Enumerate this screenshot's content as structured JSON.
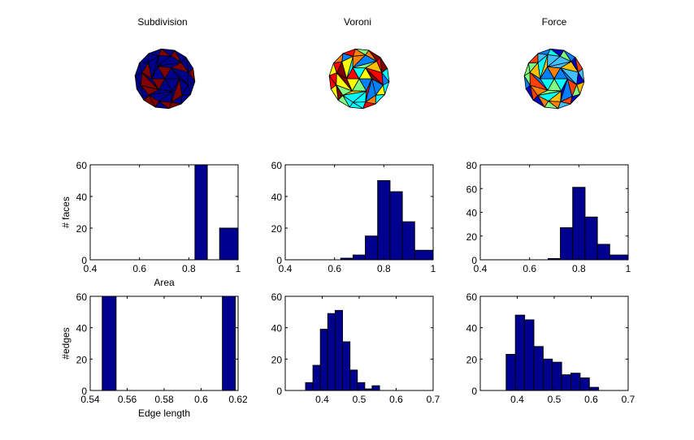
{
  "figure": {
    "columns": [
      {
        "title": "Subdivision",
        "sphere_palette": [
          "#00008f",
          "#800000"
        ]
      },
      {
        "title": "Voroni",
        "sphere_palette": [
          "#ffff00",
          "#ff8000",
          "#80ff80",
          "#00ffff",
          "#ff0000",
          "#0080ff",
          "#800000",
          "#ffc000"
        ]
      },
      {
        "title": "Force",
        "sphere_palette": [
          "#00ffff",
          "#0080ff",
          "#80ff80",
          "#0000c0",
          "#ffc000",
          "#ff8000",
          "#40c0ff",
          "#ff4000"
        ]
      }
    ],
    "colors": {
      "bar_fill": "#00008f",
      "bar_edge": "#000000",
      "axes": "#000000",
      "background": "#ffffff"
    }
  },
  "chart_data": [
    {
      "type": "bar",
      "panel": "subdivision-area",
      "title": "",
      "xlabel": "Area",
      "ylabel": "# faces",
      "xlim": [
        0.4,
        1.0
      ],
      "ylim": [
        0,
        60
      ],
      "xticks": [
        0.4,
        0.6,
        0.8,
        1.0
      ],
      "xtick_labels": [
        "0.4",
        "0.6",
        "0.8",
        "1"
      ],
      "yticks": [
        0,
        20,
        40,
        60
      ],
      "ytick_labels": [
        "0",
        "20",
        "40",
        "60"
      ],
      "bins": [
        {
          "x0": 0.825,
          "x1": 0.875,
          "count": 60
        },
        {
          "x0": 0.925,
          "x1": 1.0,
          "count": 20
        }
      ]
    },
    {
      "type": "bar",
      "panel": "voroni-area",
      "title": "",
      "xlabel": "",
      "ylabel": "",
      "xlim": [
        0.4,
        1.0
      ],
      "ylim": [
        0,
        60
      ],
      "xticks": [
        0.4,
        0.6,
        0.8,
        1.0
      ],
      "xtick_labels": [
        "0.4",
        "0.6",
        "0.8",
        "1"
      ],
      "yticks": [
        0,
        20,
        40,
        60
      ],
      "ytick_labels": [
        "0",
        "20",
        "40",
        "60"
      ],
      "bins": [
        {
          "x0": 0.625,
          "x1": 0.675,
          "count": 1
        },
        {
          "x0": 0.675,
          "x1": 0.725,
          "count": 3
        },
        {
          "x0": 0.725,
          "x1": 0.775,
          "count": 15
        },
        {
          "x0": 0.775,
          "x1": 0.825,
          "count": 50
        },
        {
          "x0": 0.825,
          "x1": 0.875,
          "count": 43
        },
        {
          "x0": 0.875,
          "x1": 0.925,
          "count": 24
        },
        {
          "x0": 0.925,
          "x1": 1.0,
          "count": 6
        }
      ]
    },
    {
      "type": "bar",
      "panel": "force-area",
      "title": "",
      "xlabel": "",
      "ylabel": "",
      "xlim": [
        0.4,
        1.0
      ],
      "ylim": [
        0,
        80
      ],
      "xticks": [
        0.4,
        0.6,
        0.8,
        1.0
      ],
      "xtick_labels": [
        "0.4",
        "0.6",
        "0.8",
        "1"
      ],
      "yticks": [
        0,
        20,
        40,
        60,
        80
      ],
      "ytick_labels": [
        "0",
        "20",
        "40",
        "60",
        "80"
      ],
      "bins": [
        {
          "x0": 0.675,
          "x1": 0.725,
          "count": 1
        },
        {
          "x0": 0.725,
          "x1": 0.775,
          "count": 27
        },
        {
          "x0": 0.775,
          "x1": 0.825,
          "count": 61
        },
        {
          "x0": 0.825,
          "x1": 0.875,
          "count": 36
        },
        {
          "x0": 0.875,
          "x1": 0.925,
          "count": 13
        },
        {
          "x0": 0.925,
          "x1": 1.0,
          "count": 4
        }
      ]
    },
    {
      "type": "bar",
      "panel": "subdivision-edge",
      "title": "",
      "xlabel": "Edge length",
      "ylabel": "#edges",
      "xlim": [
        0.54,
        0.62
      ],
      "ylim": [
        0,
        60
      ],
      "xticks": [
        0.54,
        0.56,
        0.58,
        0.6,
        0.62
      ],
      "xtick_labels": [
        "0.54",
        "0.56",
        "0.58",
        "0.6",
        "0.62"
      ],
      "yticks": [
        0,
        20,
        40,
        60
      ],
      "ytick_labels": [
        "0",
        "20",
        "40",
        "60"
      ],
      "bins": [
        {
          "x0": 0.5465,
          "x1": 0.554,
          "count": 60
        },
        {
          "x0": 0.6115,
          "x1": 0.6185,
          "count": 60
        }
      ]
    },
    {
      "type": "bar",
      "panel": "voroni-edge",
      "title": "",
      "xlabel": "",
      "ylabel": "",
      "xlim": [
        0.3,
        0.7
      ],
      "ylim": [
        0,
        60
      ],
      "xticks": [
        0.4,
        0.5,
        0.6,
        0.7
      ],
      "xtick_labels": [
        "0.4",
        "0.5",
        "0.6",
        "0.7"
      ],
      "yticks": [
        0,
        20,
        40,
        60
      ],
      "ytick_labels": [
        "0",
        "20",
        "40",
        "60"
      ],
      "bins": [
        {
          "x0": 0.355,
          "x1": 0.375,
          "count": 5
        },
        {
          "x0": 0.375,
          "x1": 0.395,
          "count": 16
        },
        {
          "x0": 0.395,
          "x1": 0.415,
          "count": 39
        },
        {
          "x0": 0.415,
          "x1": 0.435,
          "count": 49
        },
        {
          "x0": 0.435,
          "x1": 0.455,
          "count": 51
        },
        {
          "x0": 0.455,
          "x1": 0.475,
          "count": 31
        },
        {
          "x0": 0.475,
          "x1": 0.495,
          "count": 13
        },
        {
          "x0": 0.495,
          "x1": 0.515,
          "count": 5
        },
        {
          "x0": 0.515,
          "x1": 0.535,
          "count": 1
        },
        {
          "x0": 0.535,
          "x1": 0.555,
          "count": 3
        }
      ]
    },
    {
      "type": "bar",
      "panel": "force-edge",
      "title": "",
      "xlabel": "",
      "ylabel": "",
      "xlim": [
        0.3,
        0.7
      ],
      "ylim": [
        0,
        60
      ],
      "xticks": [
        0.4,
        0.5,
        0.6,
        0.7
      ],
      "xtick_labels": [
        "0.4",
        "0.5",
        "0.6",
        "0.7"
      ],
      "yticks": [
        0,
        20,
        40,
        60
      ],
      "ytick_labels": [
        "0",
        "20",
        "40",
        "60"
      ],
      "bins": [
        {
          "x0": 0.37,
          "x1": 0.395,
          "count": 23
        },
        {
          "x0": 0.395,
          "x1": 0.42,
          "count": 48
        },
        {
          "x0": 0.42,
          "x1": 0.445,
          "count": 45
        },
        {
          "x0": 0.445,
          "x1": 0.47,
          "count": 28
        },
        {
          "x0": 0.47,
          "x1": 0.495,
          "count": 20
        },
        {
          "x0": 0.495,
          "x1": 0.52,
          "count": 18
        },
        {
          "x0": 0.52,
          "x1": 0.545,
          "count": 10
        },
        {
          "x0": 0.545,
          "x1": 0.57,
          "count": 11
        },
        {
          "x0": 0.57,
          "x1": 0.595,
          "count": 8
        },
        {
          "x0": 0.595,
          "x1": 0.62,
          "count": 2
        }
      ]
    }
  ]
}
